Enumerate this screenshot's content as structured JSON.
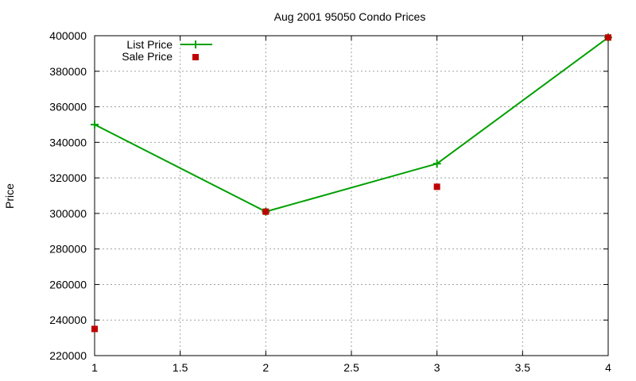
{
  "chart_data": {
    "type": "line",
    "title": "Aug 2001 95050 Condo Prices",
    "xlabel": "",
    "ylabel": "Price",
    "xlim": [
      1,
      4
    ],
    "ylim": [
      220000,
      400000
    ],
    "x_ticks": [
      "1",
      "1.5",
      "2",
      "2.5",
      "3",
      "3.5",
      "4"
    ],
    "y_ticks": [
      "220000",
      "240000",
      "260000",
      "280000",
      "300000",
      "320000",
      "340000",
      "360000",
      "380000",
      "400000"
    ],
    "grid": true,
    "legend_position": "top-left",
    "series": [
      {
        "name": "List Price",
        "style": "linespoints",
        "marker": "plus",
        "color": "#00a000",
        "points": [
          {
            "x": 1,
            "y": 350000
          },
          {
            "x": 2,
            "y": 301000
          },
          {
            "x": 3,
            "y": 328000
          },
          {
            "x": 4,
            "y": 399000
          }
        ]
      },
      {
        "name": "Sale Price",
        "style": "points",
        "marker": "square",
        "color": "#c00000",
        "points": [
          {
            "x": 1,
            "y": 235000
          },
          {
            "x": 2,
            "y": 301000
          },
          {
            "x": 3,
            "y": 315000
          },
          {
            "x": 4,
            "y": 399000
          }
        ]
      }
    ]
  }
}
